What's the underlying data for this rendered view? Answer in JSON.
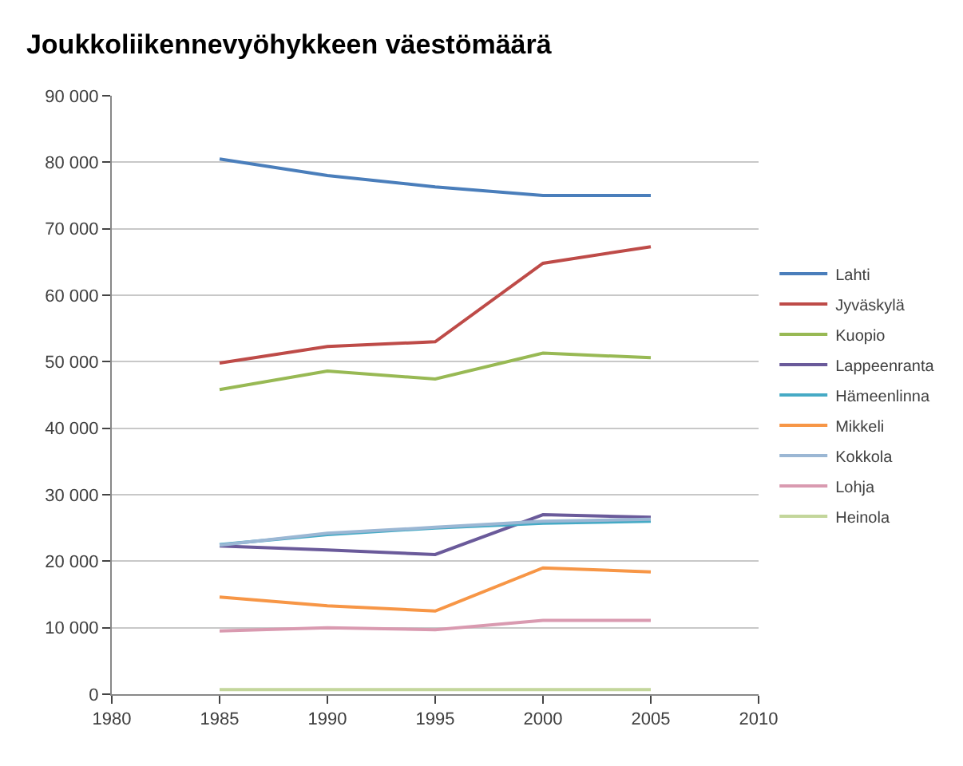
{
  "chart_data": {
    "type": "line",
    "title": "Joukkoliikennevyöhykkeen väestömäärä",
    "x": [
      1985,
      1990,
      1995,
      2000,
      2005
    ],
    "series": [
      {
        "name": "Lahti",
        "color": "#4a7ebb",
        "values": [
          80500,
          78000,
          76300,
          75000,
          75000
        ]
      },
      {
        "name": "Jyväskylä",
        "color": "#be4b48",
        "values": [
          49800,
          52300,
          53000,
          64800,
          67300
        ]
      },
      {
        "name": "Kuopio",
        "color": "#98b954",
        "values": [
          45800,
          48600,
          47400,
          51300,
          50600
        ]
      },
      {
        "name": "Lappeenranta",
        "color": "#6a5a9a",
        "values": [
          22300,
          21700,
          21000,
          27000,
          26600
        ]
      },
      {
        "name": "Hämeenlinna",
        "color": "#46aac5",
        "values": [
          22500,
          24000,
          25000,
          25700,
          26000
        ]
      },
      {
        "name": "Mikkeli",
        "color": "#f79646",
        "values": [
          14600,
          13300,
          12500,
          19000,
          18400
        ]
      },
      {
        "name": "Kokkola",
        "color": "#9bb7d4",
        "values": [
          22400,
          24200,
          25100,
          26000,
          26300
        ]
      },
      {
        "name": "Lohja",
        "color": "#d99ab0",
        "values": [
          9500,
          10000,
          9700,
          11100,
          11100
        ]
      },
      {
        "name": "Heinola",
        "color": "#c3d69b",
        "values": [
          700,
          700,
          700,
          700,
          700
        ]
      }
    ],
    "xlim": [
      1980,
      2010
    ],
    "xticks": [
      1980,
      1985,
      1990,
      1995,
      2000,
      2005,
      2010
    ],
    "ylim": [
      0,
      90000
    ],
    "yticks": [
      {
        "value": 0,
        "label": "0"
      },
      {
        "value": 10000,
        "label": "10 000"
      },
      {
        "value": 20000,
        "label": "20 000"
      },
      {
        "value": 30000,
        "label": "30 000"
      },
      {
        "value": 40000,
        "label": "40 000"
      },
      {
        "value": 50000,
        "label": "50 000"
      },
      {
        "value": 60000,
        "label": "60 000"
      },
      {
        "value": 70000,
        "label": "70 000"
      },
      {
        "value": 80000,
        "label": "80 000"
      },
      {
        "value": 90000,
        "label": "90 000"
      }
    ],
    "grid": "y",
    "legend": "right",
    "marker": "none",
    "line_style": "solid"
  }
}
